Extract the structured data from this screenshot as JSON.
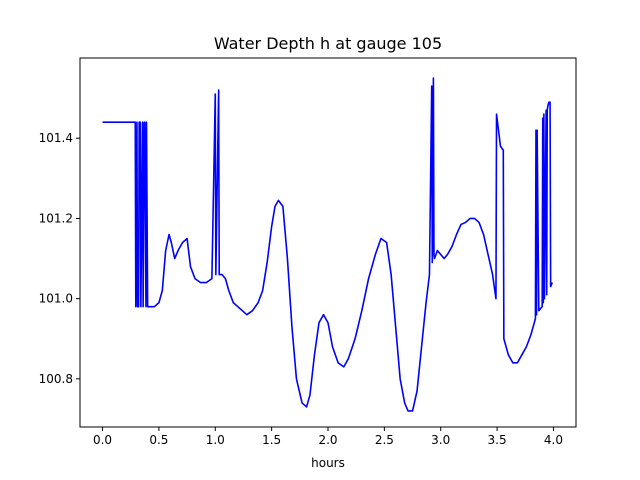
{
  "chart_data": {
    "type": "line",
    "title": "Water Depth h at gauge 105",
    "xlabel": "hours",
    "ylabel": "",
    "xlim": [
      -0.2,
      4.2
    ],
    "ylim": [
      100.68,
      101.6
    ],
    "grid": false,
    "xticks": [
      0.0,
      0.5,
      1.0,
      1.5,
      2.0,
      2.5,
      3.0,
      3.5,
      4.0
    ],
    "xtick_labels": [
      "0.0",
      "0.5",
      "1.0",
      "1.5",
      "2.0",
      "2.5",
      "3.0",
      "3.5",
      "4.0"
    ],
    "yticks": [
      100.8,
      101.0,
      101.2,
      101.4
    ],
    "ytick_labels": [
      "100.8",
      "101.0",
      "101.2",
      "101.4"
    ],
    "series": [
      {
        "color": "#0000ff",
        "x": [
          0.0,
          0.29,
          0.295,
          0.305,
          0.31,
          0.32,
          0.325,
          0.335,
          0.34,
          0.355,
          0.36,
          0.37,
          0.375,
          0.385,
          0.39,
          0.4,
          0.42,
          0.46,
          0.5,
          0.53,
          0.56,
          0.59,
          0.61,
          0.64,
          0.67,
          0.71,
          0.75,
          0.78,
          0.82,
          0.87,
          0.92,
          0.97,
          1.0,
          1.005,
          1.03,
          1.035,
          1.06,
          1.09,
          1.12,
          1.16,
          1.2,
          1.24,
          1.28,
          1.33,
          1.38,
          1.42,
          1.46,
          1.5,
          1.53,
          1.56,
          1.6,
          1.64,
          1.68,
          1.72,
          1.77,
          1.81,
          1.84,
          1.88,
          1.92,
          1.96,
          2.0,
          2.04,
          2.09,
          2.14,
          2.18,
          2.24,
          2.3,
          2.36,
          2.42,
          2.47,
          2.52,
          2.56,
          2.6,
          2.64,
          2.68,
          2.71,
          2.75,
          2.79,
          2.83,
          2.87,
          2.9,
          2.92,
          2.925,
          2.935,
          2.94,
          2.945,
          2.97,
          3.0,
          3.03,
          3.06,
          3.1,
          3.14,
          3.18,
          3.22,
          3.26,
          3.3,
          3.34,
          3.38,
          3.42,
          3.46,
          3.49,
          3.495,
          3.53,
          3.555,
          3.56,
          3.6,
          3.64,
          3.68,
          3.72,
          3.76,
          3.8,
          3.84,
          3.845,
          3.85,
          3.855,
          3.87,
          3.9,
          3.905,
          3.91,
          3.915,
          3.92,
          3.935,
          3.94,
          3.945,
          3.95,
          3.96,
          3.97,
          3.975,
          3.99
        ],
        "y": [
          101.44,
          101.44,
          100.98,
          101.44,
          100.98,
          100.98,
          101.44,
          101.44,
          100.98,
          101.44,
          100.98,
          101.44,
          101.44,
          100.98,
          101.44,
          100.98,
          100.98,
          100.98,
          100.99,
          101.02,
          101.12,
          101.16,
          101.14,
          101.1,
          101.12,
          101.14,
          101.15,
          101.08,
          101.05,
          101.04,
          101.04,
          101.05,
          101.51,
          101.06,
          101.52,
          101.06,
          101.06,
          101.05,
          101.02,
          100.99,
          100.98,
          100.97,
          100.96,
          100.97,
          100.99,
          101.02,
          101.09,
          101.18,
          101.23,
          101.245,
          101.23,
          101.1,
          100.93,
          100.8,
          100.74,
          100.73,
          100.76,
          100.86,
          100.94,
          100.96,
          100.94,
          100.88,
          100.84,
          100.83,
          100.85,
          100.9,
          100.97,
          101.05,
          101.11,
          101.15,
          101.14,
          101.06,
          100.93,
          100.8,
          100.74,
          100.72,
          100.72,
          100.77,
          100.88,
          100.99,
          101.06,
          101.53,
          101.09,
          101.55,
          101.11,
          101.1,
          101.12,
          101.11,
          101.1,
          101.11,
          101.13,
          101.16,
          101.185,
          101.19,
          101.2,
          101.2,
          101.19,
          101.16,
          101.11,
          101.06,
          101.0,
          101.46,
          101.38,
          101.37,
          100.9,
          100.86,
          100.84,
          100.84,
          100.86,
          100.88,
          100.91,
          100.95,
          101.42,
          100.96,
          101.42,
          100.97,
          100.98,
          101.45,
          100.99,
          101.46,
          101.0,
          101.47,
          101.01,
          101.47,
          101.48,
          101.49,
          101.49,
          101.03,
          101.04
        ]
      }
    ]
  }
}
